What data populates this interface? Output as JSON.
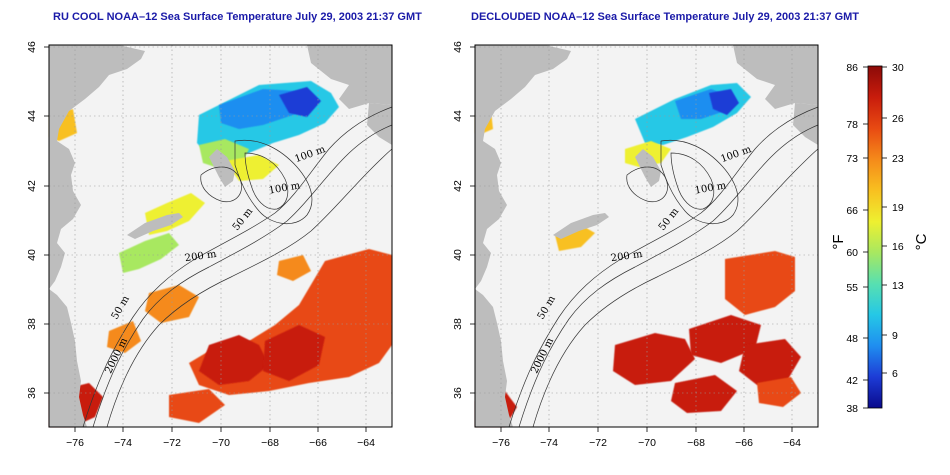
{
  "panels": [
    {
      "title": "RU COOL NOAA–12 Sea Surface Temperature July 29, 2003 21:37 GMT",
      "kind": "cloud-filtered"
    },
    {
      "title": "DECLOUDED NOAA–12 Sea Surface Temperature July 29, 2003 21:37 GMT",
      "kind": "declouded"
    }
  ],
  "axes": {
    "x_ticks": [
      "−76",
      "−74",
      "−72",
      "−70",
      "−68",
      "−66",
      "−64"
    ],
    "y_ticks": [
      "36",
      "38",
      "40",
      "42",
      "44",
      "46"
    ]
  },
  "isobath_labels": [
    "100 m",
    "100 m",
    "50 m",
    "200 m",
    "50 m",
    "2000 m"
  ],
  "colorbar": {
    "fahrenheit_label": "°F",
    "celsius_label": "°C",
    "fahrenheit_ticks": [
      "86",
      "78",
      "73",
      "66",
      "60",
      "55",
      "48",
      "42",
      "38"
    ],
    "celsius_ticks": [
      "30",
      "26",
      "23",
      "19",
      "16",
      "13",
      "9",
      "6"
    ],
    "colors": [
      "#0a0a8c",
      "#1d3cd6",
      "#1f8ef0",
      "#25c8e6",
      "#58e0b0",
      "#a8e860",
      "#eef030",
      "#f8c020",
      "#f58a1a",
      "#e84a12",
      "#c81c0c",
      "#8c0a08"
    ]
  },
  "colors": {
    "land": "#bdbdbd",
    "no_data": "#f3f3f3",
    "title": "#1a1aa8"
  }
}
